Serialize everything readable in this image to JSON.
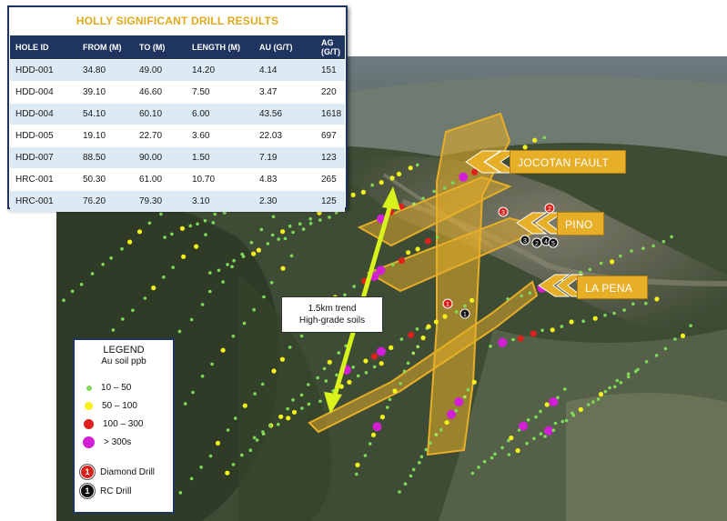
{
  "results_table": {
    "title": "HOLLY SIGNIFICANT DRILL RESULTS",
    "columns": [
      "HOLE ID",
      "FROM (M)",
      "TO (M)",
      "LENGTH (M)",
      "AU (G/T)",
      "AG (G/T)"
    ],
    "rows": [
      [
        "HDD-001",
        "34.80",
        "49.00",
        "14.20",
        "4.14",
        "151"
      ],
      [
        "HDD-004",
        "39.10",
        "46.60",
        "7.50",
        "3.47",
        "220"
      ],
      [
        "HDD-004",
        "54.10",
        "60.10",
        "6.00",
        "43.56",
        "1618"
      ],
      [
        "HDD-005",
        "19.10",
        "22.70",
        "3.60",
        "22.03",
        "697"
      ],
      [
        "HDD-007",
        "88.50",
        "90.00",
        "1.50",
        "7.19",
        "123"
      ],
      [
        "HRC-001",
        "50.30",
        "61.00",
        "10.70",
        "4.83",
        "265"
      ],
      [
        "HRC-001",
        "76.20",
        "79.30",
        "3.10",
        "2.30",
        "125"
      ]
    ]
  },
  "legend": {
    "title": "LEGEND",
    "subtitle": "Au soil ppb",
    "items": [
      {
        "label": "10 – 50",
        "color": "#7ed957"
      },
      {
        "label": "50 – 100",
        "color": "#f4f21a"
      },
      {
        "label": "100 – 300",
        "color": "#e0201c"
      },
      {
        "label": "> 300s",
        "color": "#d21fd6"
      }
    ],
    "drill_types": [
      {
        "label": "Diamond Drill",
        "badge": "1",
        "color": "#d9221e"
      },
      {
        "label": "RC Drill",
        "badge": "1",
        "color": "#111111"
      }
    ]
  },
  "trend_callout": {
    "line1": "1.5km trend",
    "line2": "High-grade soils"
  },
  "faults": [
    {
      "label": "JOCOTAN FAULT"
    },
    {
      "label": "PINO"
    },
    {
      "label": "LA PENA"
    }
  ],
  "drill_markers": [
    {
      "number": "3",
      "type": "diamond"
    },
    {
      "number": "2",
      "type": "diamond"
    },
    {
      "number": "3",
      "type": "rc"
    },
    {
      "number": "2",
      "type": "rc"
    },
    {
      "number": "4",
      "type": "rc"
    },
    {
      "number": "5",
      "type": "rc"
    },
    {
      "number": "1",
      "type": "diamond"
    },
    {
      "number": "1",
      "type": "rc"
    }
  ],
  "colors": {
    "navy": "#1f3560",
    "gold": "#e0a91c",
    "fault_fill": "#e7ae27",
    "trend_arrow": "#d8f21c"
  }
}
